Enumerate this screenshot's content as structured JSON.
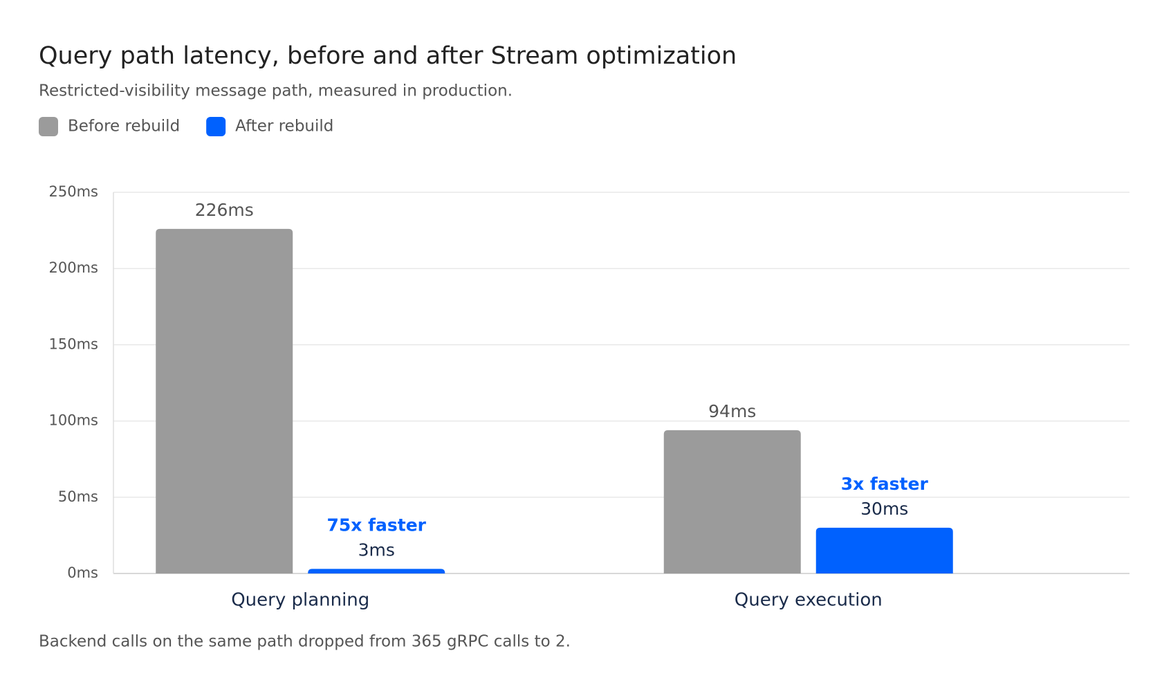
{
  "chart_data": {
    "type": "bar",
    "title": "Query path latency, before and after Stream optimization",
    "subtitle": "Restricted-visibility message path, measured in production.",
    "categories": [
      "Query planning",
      "Query execution"
    ],
    "series": [
      {
        "name": "Before rebuild",
        "color": "#9b9b9b",
        "values": [
          226,
          94
        ],
        "value_labels": [
          "226ms",
          "94ms"
        ]
      },
      {
        "name": "After rebuild",
        "color": "#0061fe",
        "values": [
          3,
          30
        ],
        "value_labels": [
          "3ms",
          "30ms"
        ],
        "annotations": [
          "75x faster",
          "3x faster"
        ]
      }
    ],
    "ylim": [
      0,
      250
    ],
    "yticks": [
      {
        "value": 0,
        "label": "0ms"
      },
      {
        "value": 50,
        "label": "50ms"
      },
      {
        "value": 100,
        "label": "100ms"
      },
      {
        "value": 150,
        "label": "150ms"
      },
      {
        "value": 200,
        "label": "200ms"
      },
      {
        "value": 250,
        "label": "250ms"
      }
    ],
    "grid": true,
    "legend": "top-left",
    "note": "Backend calls on the same path dropped from 365 gRPC calls to 2."
  }
}
